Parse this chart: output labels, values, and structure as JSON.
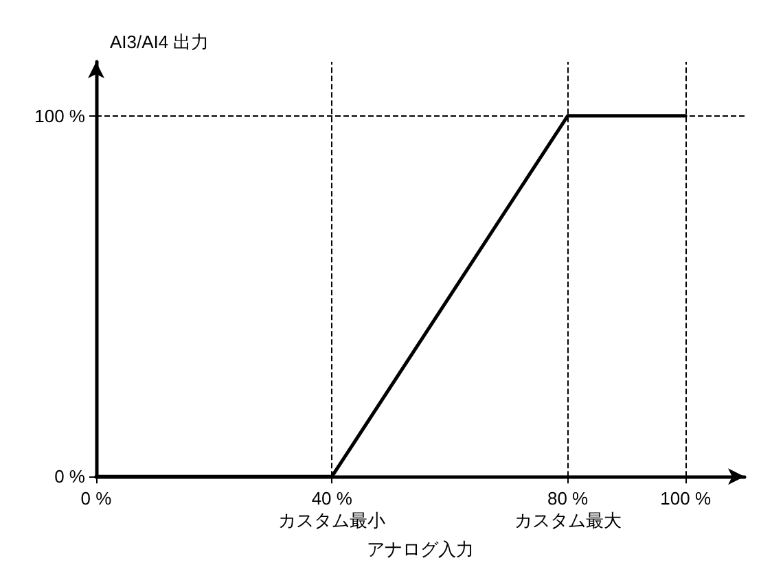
{
  "chart_data": {
    "type": "line",
    "xlabel": "アナログ入力",
    "ylabel": "AI3/AI4 出力",
    "x": [
      0,
      40,
      80,
      100
    ],
    "series": [
      {
        "color": "#000000",
        "values": [
          0,
          0,
          100,
          100
        ]
      }
    ],
    "xlim": [
      0,
      110
    ],
    "xticks": [
      {
        "value": 0,
        "label": "0 %"
      },
      {
        "value": 40,
        "label": "40 %\nカスタム最小"
      },
      {
        "value": 80,
        "label": "80 %\nカスタム最大"
      },
      {
        "value": 100,
        "label": "100 %"
      }
    ],
    "ylim": [
      0,
      115
    ],
    "yticks": [
      {
        "value": 0,
        "label": "0 %"
      },
      {
        "value": 100,
        "label": "100 %"
      }
    ],
    "ref_lines": [
      {
        "axis": "x",
        "value": 40,
        "color": "#000000",
        "line_style": "dashed"
      },
      {
        "axis": "x",
        "value": 80,
        "color": "#000000",
        "line_style": "dashed"
      },
      {
        "axis": "x",
        "value": 100,
        "color": "#000000",
        "line_style": "dashed"
      },
      {
        "axis": "y",
        "value": 100,
        "color": "#000000",
        "line_style": "dashed"
      }
    ],
    "grid": false,
    "marker": "none",
    "line_style": "solid"
  }
}
